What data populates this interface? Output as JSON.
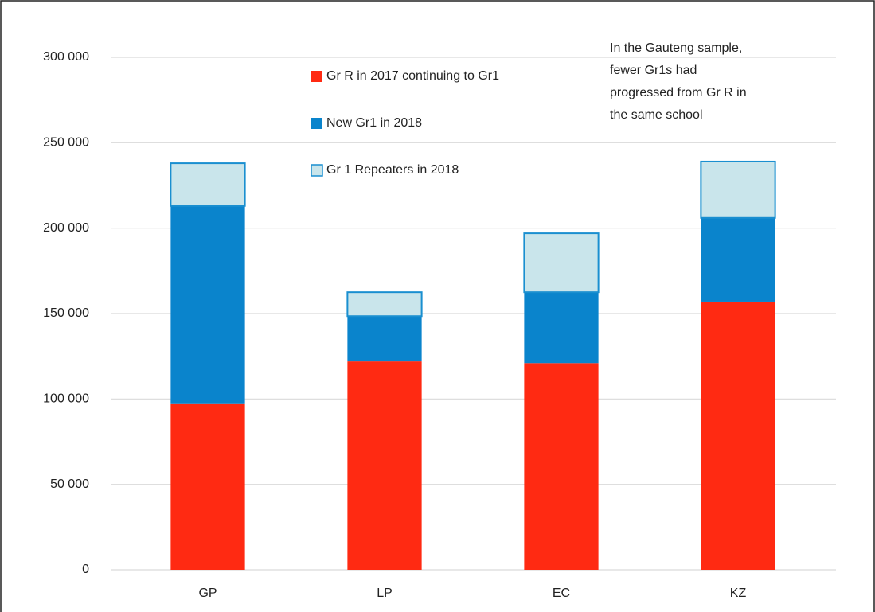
{
  "chart_data": {
    "type": "stacked-bar",
    "categories": [
      "GP",
      "LP",
      "EC",
      "KZ"
    ],
    "series": [
      {
        "name": "Gr R in 2017 continuing to Gr1",
        "color": "#ff2a12",
        "values": [
          97000,
          122000,
          121000,
          157000
        ]
      },
      {
        "name": "New Gr1 in 2018",
        "color": "#0a84cc",
        "values": [
          116000,
          26500,
          41500,
          49000
        ]
      },
      {
        "name": "Gr 1 Repeaters in 2018",
        "color": "#c9e5eb",
        "values": [
          25000,
          14000,
          34500,
          33000
        ]
      }
    ],
    "ylim": [
      0,
      300000
    ],
    "yticks": [
      0,
      {
        "value": 50000,
        "label": "50 000"
      },
      {
        "value": 100000,
        "label": "100 000"
      },
      {
        "value": 150000,
        "label": "150 000"
      },
      {
        "value": 200000,
        "label": "200 000"
      },
      {
        "value": 250000,
        "label": "250 000"
      },
      {
        "value": 300000,
        "label": "300 000"
      }
    ],
    "grid": true,
    "annotation": [
      "In the Gauteng sample,",
      "fewer Gr1s had",
      "progressed from Gr R in",
      "the same school"
    ],
    "annotation_color": "#ff2020"
  }
}
